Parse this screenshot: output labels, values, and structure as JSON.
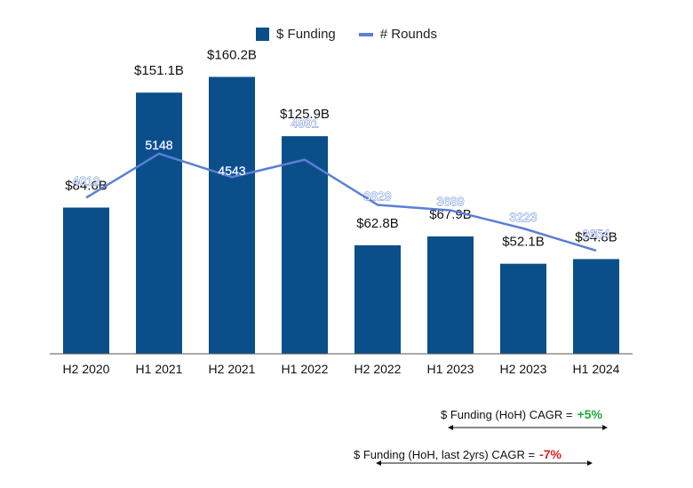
{
  "chart_data": {
    "type": "bar",
    "categories": [
      "H2 2020",
      "H1 2021",
      "H2 2021",
      "H1 2022",
      "H2 2022",
      "H1 2023",
      "H2 2023",
      "H1 2024"
    ],
    "series": [
      {
        "name": "$ Funding",
        "kind": "bar",
        "values": [
          84.6,
          151.1,
          160.2,
          125.9,
          62.8,
          67.9,
          52.1,
          54.8
        ],
        "labels": [
          "$84.6B",
          "$151.1B",
          "$160.2B",
          "$125.9B",
          "$62.8B",
          "$67.9B",
          "$52.1B",
          "$54.8B"
        ]
      },
      {
        "name": "# Rounds",
        "kind": "line",
        "values": [
          4012,
          5148,
          4543,
          4991,
          3829,
          3689,
          3223,
          2654
        ],
        "labels": [
          "4012",
          "5148",
          "4543",
          "4991",
          "3829",
          "3689",
          "3223",
          "2654"
        ]
      }
    ],
    "ylim_funding": [
      0,
      180
    ],
    "ylim_rounds": [
      0,
      8000
    ],
    "grid": false,
    "legend": "top-center"
  },
  "colors": {
    "bar": "#0b4f8a",
    "line": "#5b7fd6",
    "positive": "#22a83a",
    "negative": "#e02020"
  },
  "annotations": [
    {
      "label": "$ Funding (HoH) CAGR =",
      "value": "+5%",
      "status": "positive"
    },
    {
      "label": "$ Funding (HoH, last 2yrs) CAGR =",
      "value": "-7%",
      "status": "negative"
    }
  ]
}
